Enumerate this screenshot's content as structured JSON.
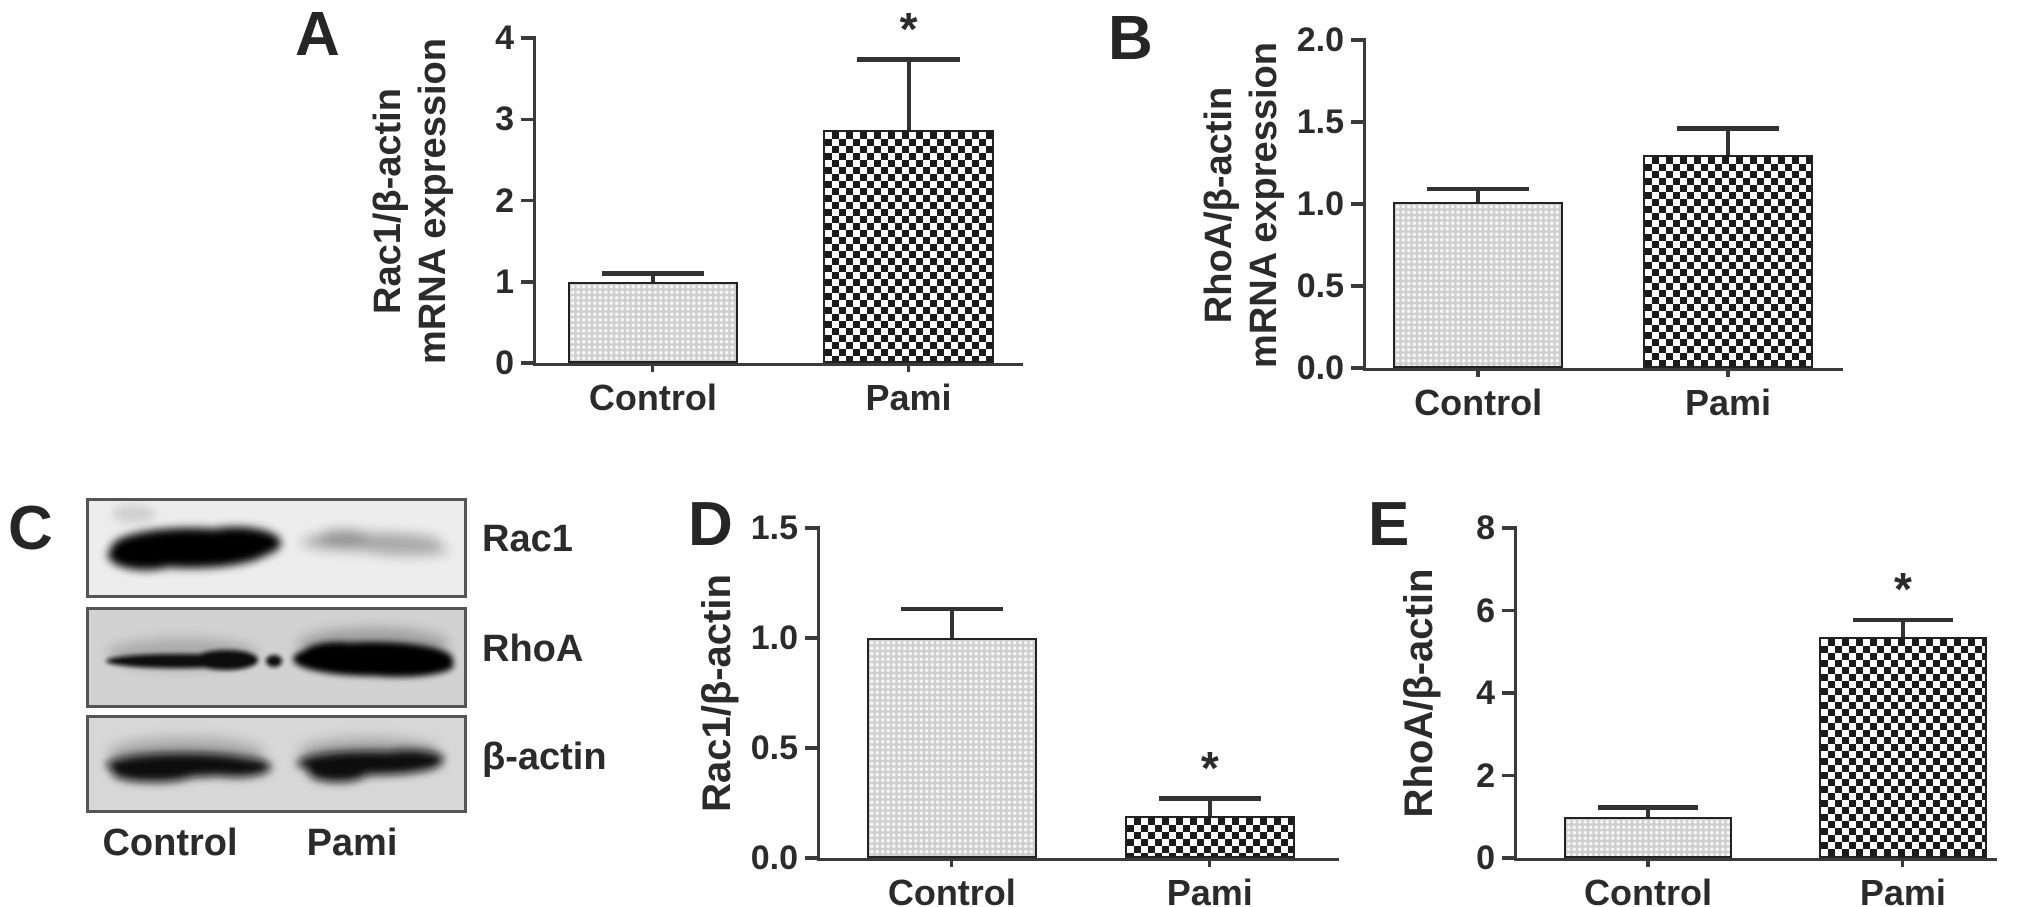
{
  "figure": {
    "background": "#ffffff",
    "text_color": "#2b2b2b",
    "axis_color": "#3a3a3a",
    "groups": [
      "Control",
      "Pami"
    ]
  },
  "chart_data": [
    {
      "panel": "A",
      "type": "bar",
      "ylabel_lines": [
        "Rac1/β-actin",
        "mRNA expression"
      ],
      "categories": [
        "Control",
        "Pami"
      ],
      "values": [
        1.0,
        2.87
      ],
      "errors": [
        0.1,
        0.86
      ],
      "significance": [
        "",
        "*"
      ],
      "ylim": [
        0,
        4
      ],
      "ytick_labels": [
        "0",
        "1",
        "2",
        "3",
        "4"
      ],
      "bar_patterns": [
        "fine-dots",
        "checker"
      ],
      "grid": "off",
      "legend": "none"
    },
    {
      "panel": "B",
      "type": "bar",
      "ylabel_lines": [
        "RhoA/β-actin",
        "mRNA expression"
      ],
      "categories": [
        "Control",
        "Pami"
      ],
      "values": [
        1.01,
        1.3
      ],
      "errors": [
        0.08,
        0.16
      ],
      "significance": [
        "",
        ""
      ],
      "ylim": [
        0,
        2
      ],
      "ytick_labels": [
        "0.0",
        "0.5",
        "1.0",
        "1.5",
        "2.0"
      ],
      "bar_patterns": [
        "fine-dots",
        "checker"
      ],
      "grid": "off",
      "legend": "none"
    },
    {
      "panel": "D",
      "type": "bar",
      "ylabel_lines": [
        "Rac1/β-actin"
      ],
      "categories": [
        "Control",
        "Pami"
      ],
      "values": [
        1.0,
        0.19
      ],
      "errors": [
        0.13,
        0.08
      ],
      "significance": [
        "",
        "*"
      ],
      "ylim": [
        0,
        1.5
      ],
      "ytick_labels": [
        "0.0",
        "0.5",
        "1.0",
        "1.5"
      ],
      "bar_patterns": [
        "fine-dots",
        "checker"
      ],
      "grid": "off",
      "legend": "none"
    },
    {
      "panel": "E",
      "type": "bar",
      "ylabel_lines": [
        "RhoA/β-actin"
      ],
      "categories": [
        "Control",
        "Pami"
      ],
      "values": [
        1.0,
        5.35
      ],
      "errors": [
        0.22,
        0.42
      ],
      "significance": [
        "",
        "*"
      ],
      "ylim": [
        0,
        8
      ],
      "ytick_labels": [
        "0",
        "2",
        "4",
        "6",
        "8"
      ],
      "bar_patterns": [
        "fine-dots",
        "checker"
      ],
      "grid": "off",
      "legend": "none"
    }
  ],
  "blot": {
    "panel": "C",
    "row_labels": [
      "Rac1",
      "RhoA",
      "β-actin"
    ],
    "column_labels": [
      "Control",
      "Pami"
    ],
    "bands": [
      {
        "row": "Rac1",
        "control": "strong-wide",
        "pami": "faint-smear"
      },
      {
        "row": "RhoA",
        "control": "thin",
        "pami": "strong-wide"
      },
      {
        "row": "β-actin",
        "control": "medium",
        "pami": "medium"
      }
    ]
  }
}
